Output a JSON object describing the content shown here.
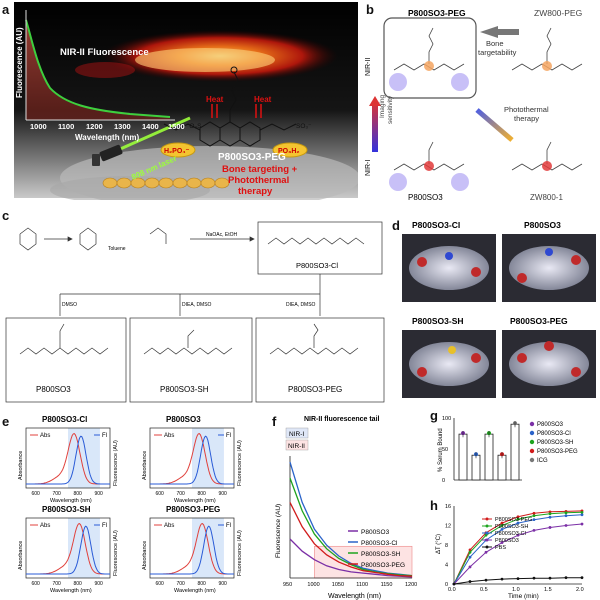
{
  "panels": {
    "a": {
      "label": "a",
      "nir_label": "NIR-II Fluorescence",
      "ylabel": "Fluorescence (AU)",
      "xlabel": "Wavelength (nm)",
      "xticks": [
        "1000",
        "1100",
        "1200",
        "1300",
        "1400",
        "1500"
      ],
      "laser": "808 nm laser",
      "compound": "P800SO3-PEG",
      "heat": "Heat",
      "h2po4_left": "H₂PO₄⁻",
      "h2po4_right": "PO₃H₂",
      "so3_left": "⁻O₃S",
      "so3_right": "SO₃⁻",
      "caption": [
        "Bone targeting +",
        "Photothermal",
        "therapy"
      ]
    },
    "b": {
      "label": "b",
      "top_left": "P800SO3-PEG",
      "top_right": "ZW800-PEG",
      "bottom_left": "P800SO3",
      "bottom_right": "ZW800-1",
      "arrow_top": [
        "Bone",
        "targetability"
      ],
      "arrow_side": [
        "Imaging",
        "sensitivity"
      ],
      "arrow_diag": [
        "Photothermal",
        "therapy"
      ],
      "nir2": "NIR-II",
      "nir1": "NIR-I"
    },
    "c": {
      "label": "c",
      "reagent1": "Toluene",
      "reagent2": "NaOAc, EtOH",
      "reagent3": "DMSO",
      "reagent4": "DIEA, DMSO",
      "reagent5": "DIEA, DMSO",
      "center": "P800SO3-Cl",
      "p1": "P800SO3",
      "p2": "P800SO3-SH",
      "p3": "P800SO3-PEG"
    },
    "d": {
      "label": "d",
      "m1": "P800SO3-Cl",
      "m2": "P800SO3",
      "m3": "P800SO3-SH",
      "m4": "P800SO3-PEG"
    },
    "e": {
      "label": "e",
      "plots": [
        {
          "title": "P800SO3-Cl"
        },
        {
          "title": "P800SO3"
        },
        {
          "title": "P800SO3-SH"
        },
        {
          "title": "P800SO3-PEG"
        }
      ],
      "abs": "Abs",
      "fl": "Fl",
      "ylabel_left": "Absorbance",
      "ylabel_right": "Fluorescence (AU)",
      "xlabel": "Wavelength (nm)",
      "xticks": [
        "600",
        "700",
        "800",
        "900"
      ]
    },
    "f": {
      "label": "f",
      "title": "NIR-II fluorescence tail",
      "nir1": "NIR-I",
      "nir2": "NIR-II",
      "ylabel": "Fluorescence (AU)",
      "xlabel": "Wavelength (nm)",
      "xticks": [
        "950",
        "1000",
        "1050",
        "1100",
        "1150",
        "1200"
      ]
    },
    "g": {
      "label": "g",
      "ylabel": "% Serum Bound",
      "yticks": [
        "0",
        "50",
        "100"
      ],
      "legend": [
        "P800SO3",
        "P800SO3-Cl",
        "P800SO3-SH",
        "P800SO3-PEG",
        "ICG"
      ]
    },
    "h": {
      "label": "h",
      "ylabel": "ΔT (°C)",
      "xlabel": "Time (min)",
      "yticks": [
        "0",
        "4",
        "8",
        "12",
        "16"
      ],
      "xticks": [
        "0.0",
        "0.5",
        "1.0",
        "1.5",
        "2.0"
      ],
      "legend": [
        "P800SO3-PEG",
        "P800SO3-SH",
        "P800SO3-Cl",
        "P800SO3",
        "PBS"
      ]
    }
  },
  "colors": {
    "so3": "#7b2fa6",
    "cl": "#2a63c9",
    "sh": "#1ea41e",
    "peg": "#d11b1b",
    "icg": "#777777",
    "pbs": "#111111",
    "abs": "#e0413c",
    "fl": "#2a5bd7"
  },
  "chart_data": [
    {
      "type": "line",
      "title": "NIR-II fluorescence tail",
      "xlabel": "Wavelength (nm)",
      "ylabel": "Fluorescence (AU)",
      "xlim": [
        950,
        1200
      ],
      "x": [
        950,
        975,
        1000,
        1025,
        1050,
        1075,
        1100,
        1125,
        1150,
        1175,
        1200
      ],
      "series": [
        {
          "name": "P800SO3",
          "values": [
            0.32,
            0.22,
            0.15,
            0.1,
            0.07,
            0.05,
            0.04,
            0.03,
            0.02,
            0.015,
            0.01
          ]
        },
        {
          "name": "P800SO3-Cl",
          "values": [
            0.95,
            0.62,
            0.4,
            0.27,
            0.18,
            0.12,
            0.08,
            0.06,
            0.04,
            0.03,
            0.02
          ]
        },
        {
          "name": "P800SO3-SH",
          "values": [
            0.82,
            0.55,
            0.36,
            0.24,
            0.16,
            0.11,
            0.07,
            0.05,
            0.035,
            0.025,
            0.02
          ]
        },
        {
          "name": "P800SO3-PEG",
          "values": [
            0.62,
            0.42,
            0.28,
            0.19,
            0.13,
            0.09,
            0.06,
            0.045,
            0.03,
            0.02,
            0.015
          ]
        }
      ]
    },
    {
      "type": "bar",
      "ylabel": "% Serum Bound",
      "ylim": [
        0,
        100
      ],
      "categories": [
        "P800SO3",
        "P800SO3-Cl",
        "P800SO3-SH",
        "P800SO3-PEG",
        "ICG"
      ],
      "values": [
        74,
        40,
        74,
        40,
        90
      ]
    },
    {
      "type": "line",
      "xlabel": "Time (min)",
      "ylabel": "ΔT (°C)",
      "ylim": [
        0,
        16
      ],
      "xlim": [
        0,
        2
      ],
      "x": [
        0,
        0.25,
        0.5,
        0.75,
        1.0,
        1.25,
        1.5,
        1.75,
        2.0
      ],
      "series": [
        {
          "name": "P800SO3-PEG",
          "values": [
            0,
            7,
            10.5,
            12.5,
            13.8,
            14.5,
            14.8,
            14.9,
            15
          ]
        },
        {
          "name": "P800SO3-SH",
          "values": [
            0,
            6.5,
            10,
            12,
            13.3,
            14,
            14.4,
            14.6,
            14.7
          ]
        },
        {
          "name": "P800SO3-Cl",
          "values": [
            0,
            5.5,
            9,
            11.2,
            12.5,
            13.2,
            13.7,
            14,
            14.2
          ]
        },
        {
          "name": "P800SO3",
          "values": [
            0,
            3.5,
            6.5,
            8.5,
            10,
            11,
            11.6,
            12,
            12.3
          ]
        },
        {
          "name": "PBS",
          "values": [
            0,
            0.5,
            0.8,
            1.0,
            1.1,
            1.2,
            1.2,
            1.3,
            1.3
          ]
        }
      ]
    }
  ]
}
